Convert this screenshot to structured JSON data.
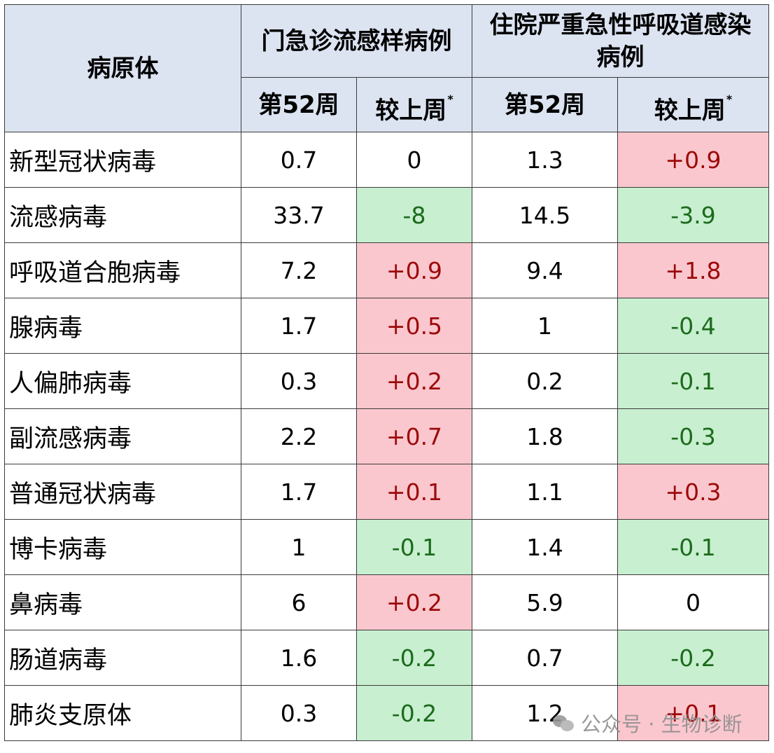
{
  "header": {
    "pathogen_col": "病原体",
    "group1": "门急诊流感样病例",
    "group2": "住院严重急性呼吸道感染病例",
    "week_col": "第52周",
    "change_col": "较上周",
    "footnote_mark": "*"
  },
  "rows": [
    {
      "name": "新型冠状病毒",
      "ili_week": "0.7",
      "ili_change": "0",
      "sari_week": "1.3",
      "sari_change": "+0.9"
    },
    {
      "name": "流感病毒",
      "ili_week": "33.7",
      "ili_change": "-8",
      "sari_week": "14.5",
      "sari_change": "-3.9"
    },
    {
      "name": "呼吸道合胞病毒",
      "ili_week": "7.2",
      "ili_change": "+0.9",
      "sari_week": "9.4",
      "sari_change": "+1.8"
    },
    {
      "name": "腺病毒",
      "ili_week": "1.7",
      "ili_change": "+0.5",
      "sari_week": "1",
      "sari_change": "-0.4"
    },
    {
      "name": "人偏肺病毒",
      "ili_week": "0.3",
      "ili_change": "+0.2",
      "sari_week": "0.2",
      "sari_change": "-0.1"
    },
    {
      "name": "副流感病毒",
      "ili_week": "2.2",
      "ili_change": "+0.7",
      "sari_week": "1.8",
      "sari_change": "-0.3"
    },
    {
      "name": "普通冠状病毒",
      "ili_week": "1.7",
      "ili_change": "+0.1",
      "sari_week": "1.1",
      "sari_change": "+0.3"
    },
    {
      "name": "博卡病毒",
      "ili_week": "1",
      "ili_change": "-0.1",
      "sari_week": "1.4",
      "sari_change": "-0.1"
    },
    {
      "name": "鼻病毒",
      "ili_week": "6",
      "ili_change": "+0.2",
      "sari_week": "5.9",
      "sari_change": "0"
    },
    {
      "name": "肠道病毒",
      "ili_week": "1.6",
      "ili_change": "-0.2",
      "sari_week": "0.7",
      "sari_change": "-0.2"
    },
    {
      "name": "肺炎支原体",
      "ili_week": "0.3",
      "ili_change": "-0.2",
      "sari_week": "1.2",
      "sari_change": "+0.1"
    }
  ],
  "colors": {
    "header_bg": "#dce3f1",
    "increase_bg": "#fbc7ce",
    "increase_text": "#9c0a0a",
    "decrease_bg": "#c8efd0",
    "decrease_text": "#1c6b1c"
  },
  "watermark": {
    "text": "公众号 · 生物诊断",
    "icon": "wechat-icon"
  }
}
